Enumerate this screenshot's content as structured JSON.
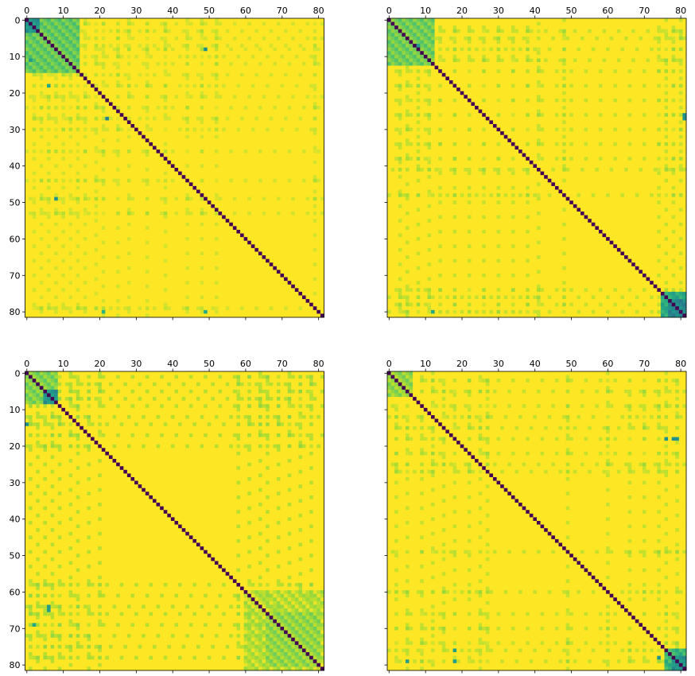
{
  "chart_data": {
    "type": "heatmap",
    "layout": "2x2 grid",
    "colormap": "viridis",
    "matrix_size": 82,
    "ticks": [
      0,
      10,
      20,
      30,
      40,
      50,
      60,
      70,
      80
    ],
    "xaxis_position": "top",
    "shared_y": true,
    "grid": false,
    "panels": [
      {
        "name": "top-left",
        "diagonal_value": 0.0,
        "background_value": 1.0,
        "blocks": [
          {
            "rows": [
              0,
              14
            ],
            "cols": [
              0,
              14
            ],
            "value": 0.7
          },
          {
            "rows": [
              0,
              3
            ],
            "cols": [
              0,
              3
            ],
            "value": 0.45
          }
        ],
        "bands_rows": [
          1,
          3,
          5,
          7,
          8,
          10,
          12,
          15,
          18,
          21,
          24,
          27,
          30,
          36,
          44,
          49,
          53,
          79
        ],
        "bands_cols": [
          2,
          4,
          6,
          8,
          10,
          12,
          14,
          16,
          19,
          21,
          25,
          28,
          33,
          38,
          44,
          48,
          52,
          79
        ],
        "band_value": 0.88,
        "spots": [
          {
            "row": 27,
            "col": 22,
            "value": 0.45
          },
          {
            "row": 49,
            "col": 8,
            "value": 0.5
          },
          {
            "row": 8,
            "col": 49,
            "value": 0.5
          },
          {
            "row": 80,
            "col": 49,
            "value": 0.6
          },
          {
            "row": 80,
            "col": 21,
            "value": 0.65
          },
          {
            "row": 18,
            "col": 6,
            "value": 0.6
          },
          {
            "row": 11,
            "col": 1,
            "value": 0.55
          }
        ]
      },
      {
        "name": "top-right",
        "diagonal_value": 0.0,
        "background_value": 1.0,
        "blocks": [
          {
            "rows": [
              0,
              12
            ],
            "cols": [
              0,
              12
            ],
            "value": 0.72
          },
          {
            "rows": [
              75,
              81
            ],
            "cols": [
              75,
              81
            ],
            "value": 0.55
          },
          {
            "rows": [
              77,
              81
            ],
            "cols": [
              77,
              81
            ],
            "value": 0.4
          }
        ],
        "bands_rows": [
          3,
          5,
          8,
          11,
          14,
          18,
          22,
          26,
          30,
          34,
          38,
          41,
          48,
          74,
          76,
          78,
          80
        ],
        "bands_cols": [
          3,
          5,
          8,
          11,
          14,
          18,
          22,
          26,
          30,
          34,
          38,
          41,
          48,
          74,
          76,
          78,
          80
        ],
        "band_value": 0.86,
        "spots": [
          {
            "row": 26,
            "col": 81,
            "value": 0.5
          },
          {
            "row": 27,
            "col": 81,
            "value": 0.5
          },
          {
            "row": 80,
            "col": 12,
            "value": 0.6
          },
          {
            "row": 7,
            "col": 8,
            "value": 0.55
          },
          {
            "row": 39,
            "col": 39,
            "value": 0.0
          }
        ]
      },
      {
        "name": "bottom-left",
        "diagonal_value": 0.0,
        "background_value": 1.0,
        "blocks": [
          {
            "rows": [
              0,
              8
            ],
            "cols": [
              0,
              8
            ],
            "value": 0.75
          },
          {
            "rows": [
              5,
              8
            ],
            "cols": [
              5,
              8
            ],
            "value": 0.45
          },
          {
            "rows": [
              60,
              81
            ],
            "cols": [
              60,
              81
            ],
            "value": 0.85
          },
          {
            "rows": [
              66,
              80
            ],
            "cols": [
              66,
              80
            ],
            "value": 0.78
          }
        ],
        "bands_rows": [
          1,
          3,
          5,
          7,
          9,
          12,
          14,
          17,
          20,
          58,
          61,
          64,
          66,
          69,
          72,
          75,
          78
        ],
        "bands_cols": [
          1,
          3,
          5,
          7,
          9,
          12,
          14,
          17,
          20,
          58,
          61,
          64,
          66,
          69,
          72,
          75,
          78
        ],
        "band_value": 0.84,
        "spots": [
          {
            "row": 65,
            "col": 6,
            "value": 0.55
          },
          {
            "row": 64,
            "col": 6,
            "value": 0.55
          },
          {
            "row": 14,
            "col": 0,
            "value": 0.5
          },
          {
            "row": 69,
            "col": 2,
            "value": 0.6
          }
        ]
      },
      {
        "name": "bottom-right",
        "diagonal_value": 0.0,
        "background_value": 1.0,
        "blocks": [
          {
            "rows": [
              0,
              6
            ],
            "cols": [
              0,
              6
            ],
            "value": 0.78
          },
          {
            "rows": [
              76,
              81
            ],
            "cols": [
              76,
              81
            ],
            "value": 0.6
          },
          {
            "rows": [
              78,
              81
            ],
            "cols": [
              78,
              81
            ],
            "value": 0.45
          }
        ],
        "bands_rows": [
          2,
          5,
          9,
          12,
          15,
          18,
          22,
          25,
          27,
          49,
          60,
          66,
          70,
          74,
          76,
          79
        ],
        "bands_cols": [
          2,
          5,
          9,
          12,
          15,
          18,
          22,
          25,
          27,
          49,
          60,
          66,
          70,
          74,
          76,
          79
        ],
        "band_value": 0.86,
        "spots": [
          {
            "row": 18,
            "col": 76,
            "value": 0.5
          },
          {
            "row": 18,
            "col": 78,
            "value": 0.5
          },
          {
            "row": 18,
            "col": 79,
            "value": 0.5
          },
          {
            "row": 76,
            "col": 18,
            "value": 0.55
          },
          {
            "row": 79,
            "col": 18,
            "value": 0.55
          },
          {
            "row": 79,
            "col": 5,
            "value": 0.55
          },
          {
            "row": 26,
            "col": 26,
            "value": 0.55
          },
          {
            "row": 78,
            "col": 74,
            "value": 0.5
          }
        ]
      }
    ]
  }
}
